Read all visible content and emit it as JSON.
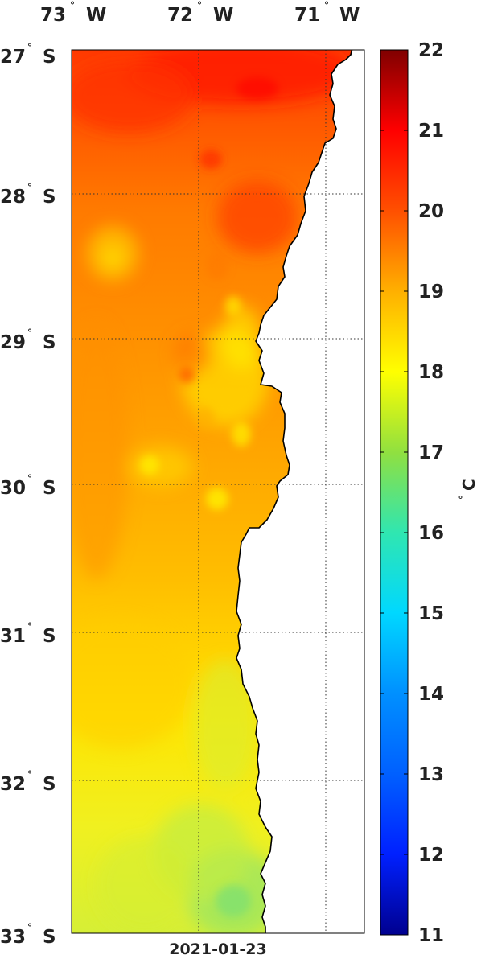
{
  "map": {
    "date": "2021-01-23",
    "unit": {
      "degree": "°",
      "symbol": "C"
    },
    "lon_labels": [
      {
        "value": "73",
        "hemisphere": "W"
      },
      {
        "value": "72",
        "hemisphere": "W"
      },
      {
        "value": "71",
        "hemisphere": "W"
      }
    ],
    "lat_labels": [
      {
        "value": "27",
        "hemisphere": "S"
      },
      {
        "value": "28",
        "hemisphere": "S"
      },
      {
        "value": "29",
        "hemisphere": "S"
      },
      {
        "value": "30",
        "hemisphere": "S"
      },
      {
        "value": "31",
        "hemisphere": "S"
      },
      {
        "value": "32",
        "hemisphere": "S"
      },
      {
        "value": "33",
        "hemisphere": "S"
      }
    ],
    "colorbar": {
      "min": 11,
      "max": 22,
      "ticks": [
        "22",
        "21",
        "20",
        "19",
        "18",
        "17",
        "16",
        "15",
        "14",
        "13",
        "12",
        "11"
      ],
      "colors": {
        "11": "#00008f",
        "12": "#0020ff",
        "13": "#0060ff",
        "14": "#0090ff",
        "15": "#00d8ff",
        "16": "#30e6b0",
        "17": "#90e040",
        "18": "#ffff00",
        "19": "#ffb000",
        "20": "#ff5000",
        "21": "#ff0000",
        "22": "#800000"
      }
    },
    "land_color": "#ffffff",
    "coastline_color": "#000000",
    "grid": true
  }
}
